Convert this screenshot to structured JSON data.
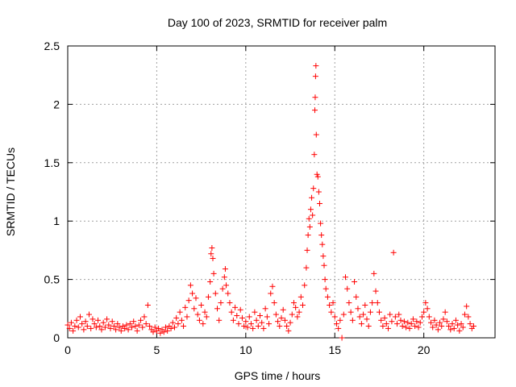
{
  "chart_data": {
    "type": "scatter",
    "title": "Day 100 of 2023, SRMTID for receiver palm",
    "xlabel": "GPS time / hours",
    "ylabel": "SRMTID / TECUs",
    "xlim": [
      0,
      24
    ],
    "ylim": [
      0,
      2.5
    ],
    "xticks": [
      0,
      5,
      10,
      15,
      20
    ],
    "yticks": [
      0,
      0.5,
      1,
      1.5,
      2,
      2.5
    ],
    "ytick_labels": [
      "0",
      "0.5",
      "1",
      "1.5",
      "2",
      "2.5"
    ],
    "grid": true,
    "marker": "+",
    "color": "#ff0000",
    "series": [
      {
        "name": "SRMTID",
        "points": [
          [
            0.0,
            0.11
          ],
          [
            0.1,
            0.08
          ],
          [
            0.2,
            0.13
          ],
          [
            0.3,
            0.06
          ],
          [
            0.4,
            0.1
          ],
          [
            0.5,
            0.15
          ],
          [
            0.6,
            0.09
          ],
          [
            0.7,
            0.18
          ],
          [
            0.8,
            0.12
          ],
          [
            0.9,
            0.07
          ],
          [
            1.0,
            0.14
          ],
          [
            1.1,
            0.1
          ],
          [
            1.2,
            0.2
          ],
          [
            1.3,
            0.08
          ],
          [
            1.4,
            0.16
          ],
          [
            1.5,
            0.12
          ],
          [
            1.6,
            0.09
          ],
          [
            1.7,
            0.15
          ],
          [
            1.8,
            0.1
          ],
          [
            1.9,
            0.07
          ],
          [
            2.0,
            0.13
          ],
          [
            2.1,
            0.09
          ],
          [
            2.2,
            0.16
          ],
          [
            2.3,
            0.11
          ],
          [
            2.4,
            0.08
          ],
          [
            2.5,
            0.14
          ],
          [
            2.6,
            0.1
          ],
          [
            2.7,
            0.07
          ],
          [
            2.8,
            0.12
          ],
          [
            2.9,
            0.09
          ],
          [
            3.0,
            0.06
          ],
          [
            3.1,
            0.1
          ],
          [
            3.2,
            0.08
          ],
          [
            3.3,
            0.11
          ],
          [
            3.4,
            0.07
          ],
          [
            3.5,
            0.12
          ],
          [
            3.6,
            0.09
          ],
          [
            3.7,
            0.14
          ],
          [
            3.8,
            0.1
          ],
          [
            3.9,
            0.06
          ],
          [
            4.0,
            0.11
          ],
          [
            4.1,
            0.15
          ],
          [
            4.2,
            0.09
          ],
          [
            4.3,
            0.18
          ],
          [
            4.4,
            0.12
          ],
          [
            4.5,
            0.28
          ],
          [
            4.6,
            0.1
          ],
          [
            4.7,
            0.07
          ],
          [
            4.8,
            0.05
          ],
          [
            4.9,
            0.09
          ],
          [
            5.0,
            0.06
          ],
          [
            5.1,
            0.08
          ],
          [
            5.2,
            0.04
          ],
          [
            5.3,
            0.07
          ],
          [
            5.4,
            0.05
          ],
          [
            5.5,
            0.09
          ],
          [
            5.6,
            0.06
          ],
          [
            5.7,
            0.1
          ],
          [
            5.8,
            0.08
          ],
          [
            5.9,
            0.13
          ],
          [
            6.0,
            0.09
          ],
          [
            6.1,
            0.17
          ],
          [
            6.2,
            0.12
          ],
          [
            6.3,
            0.22
          ],
          [
            6.4,
            0.15
          ],
          [
            6.5,
            0.1
          ],
          [
            6.6,
            0.26
          ],
          [
            6.7,
            0.18
          ],
          [
            6.8,
            0.32
          ],
          [
            6.9,
            0.45
          ],
          [
            7.0,
            0.38
          ],
          [
            7.1,
            0.25
          ],
          [
            7.2,
            0.34
          ],
          [
            7.3,
            0.2
          ],
          [
            7.4,
            0.15
          ],
          [
            7.5,
            0.28
          ],
          [
            7.6,
            0.12
          ],
          [
            7.7,
            0.22
          ],
          [
            7.8,
            0.18
          ],
          [
            7.9,
            0.35
          ],
          [
            8.0,
            0.48
          ],
          [
            8.05,
            0.72
          ],
          [
            8.1,
            0.77
          ],
          [
            8.15,
            0.68
          ],
          [
            8.2,
            0.55
          ],
          [
            8.3,
            0.38
          ],
          [
            8.4,
            0.25
          ],
          [
            8.5,
            0.15
          ],
          [
            8.6,
            0.3
          ],
          [
            8.7,
            0.42
          ],
          [
            8.8,
            0.52
          ],
          [
            8.85,
            0.59
          ],
          [
            8.9,
            0.45
          ],
          [
            9.0,
            0.38
          ],
          [
            9.1,
            0.3
          ],
          [
            9.2,
            0.22
          ],
          [
            9.3,
            0.15
          ],
          [
            9.4,
            0.26
          ],
          [
            9.5,
            0.19
          ],
          [
            9.6,
            0.12
          ],
          [
            9.7,
            0.24
          ],
          [
            9.8,
            0.17
          ],
          [
            9.9,
            0.1
          ],
          [
            10.0,
            0.14
          ],
          [
            10.1,
            0.09
          ],
          [
            10.2,
            0.18
          ],
          [
            10.3,
            0.12
          ],
          [
            10.4,
            0.08
          ],
          [
            10.5,
            0.22
          ],
          [
            10.6,
            0.15
          ],
          [
            10.7,
            0.1
          ],
          [
            10.8,
            0.19
          ],
          [
            10.9,
            0.13
          ],
          [
            11.0,
            0.08
          ],
          [
            11.1,
            0.25
          ],
          [
            11.2,
            0.18
          ],
          [
            11.3,
            0.12
          ],
          [
            11.4,
            0.38
          ],
          [
            11.5,
            0.44
          ],
          [
            11.6,
            0.3
          ],
          [
            11.7,
            0.2
          ],
          [
            11.8,
            0.14
          ],
          [
            11.9,
            0.1
          ],
          [
            12.0,
            0.17
          ],
          [
            12.1,
            0.24
          ],
          [
            12.2,
            0.15
          ],
          [
            12.3,
            0.1
          ],
          [
            12.4,
            0.06
          ],
          [
            12.5,
            0.13
          ],
          [
            12.6,
            0.2
          ],
          [
            12.7,
            0.3
          ],
          [
            12.8,
            0.26
          ],
          [
            12.9,
            0.18
          ],
          [
            13.0,
            0.22
          ],
          [
            13.1,
            0.35
          ],
          [
            13.2,
            0.28
          ],
          [
            13.3,
            0.45
          ],
          [
            13.4,
            0.6
          ],
          [
            13.45,
            0.75
          ],
          [
            13.5,
            0.88
          ],
          [
            13.55,
            1.02
          ],
          [
            13.6,
            0.95
          ],
          [
            13.65,
            1.1
          ],
          [
            13.7,
            1.2
          ],
          [
            13.75,
            1.05
          ],
          [
            13.8,
            1.28
          ],
          [
            13.85,
            1.57
          ],
          [
            13.88,
            1.95
          ],
          [
            13.9,
            2.06
          ],
          [
            13.92,
            2.24
          ],
          [
            13.94,
            2.33
          ],
          [
            13.96,
            1.74
          ],
          [
            14.0,
            1.4
          ],
          [
            14.05,
            1.38
          ],
          [
            14.1,
            1.25
          ],
          [
            14.15,
            1.15
          ],
          [
            14.2,
            0.98
          ],
          [
            14.25,
            0.88
          ],
          [
            14.3,
            0.8
          ],
          [
            14.35,
            0.7
          ],
          [
            14.4,
            0.62
          ],
          [
            14.45,
            0.5
          ],
          [
            14.5,
            0.42
          ],
          [
            14.6,
            0.35
          ],
          [
            14.7,
            0.28
          ],
          [
            14.8,
            0.22
          ],
          [
            14.9,
            0.3
          ],
          [
            15.0,
            0.18
          ],
          [
            15.1,
            0.12
          ],
          [
            15.2,
            0.08
          ],
          [
            15.3,
            0.15
          ],
          [
            15.4,
            0.0
          ],
          [
            15.5,
            0.2
          ],
          [
            15.6,
            0.52
          ],
          [
            15.7,
            0.42
          ],
          [
            15.8,
            0.3
          ],
          [
            15.9,
            0.22
          ],
          [
            16.0,
            0.15
          ],
          [
            16.1,
            0.48
          ],
          [
            16.2,
            0.35
          ],
          [
            16.3,
            0.25
          ],
          [
            16.4,
            0.18
          ],
          [
            16.5,
            0.12
          ],
          [
            16.6,
            0.2
          ],
          [
            16.7,
            0.28
          ],
          [
            16.8,
            0.16
          ],
          [
            16.9,
            0.1
          ],
          [
            17.0,
            0.22
          ],
          [
            17.1,
            0.3
          ],
          [
            17.2,
            0.55
          ],
          [
            17.3,
            0.4
          ],
          [
            17.4,
            0.3
          ],
          [
            17.5,
            0.22
          ],
          [
            17.6,
            0.15
          ],
          [
            17.7,
            0.1
          ],
          [
            17.8,
            0.17
          ],
          [
            17.9,
            0.12
          ],
          [
            18.0,
            0.08
          ],
          [
            18.1,
            0.2
          ],
          [
            18.2,
            0.14
          ],
          [
            18.3,
            0.73
          ],
          [
            18.4,
            0.18
          ],
          [
            18.5,
            0.12
          ],
          [
            18.6,
            0.2
          ],
          [
            18.7,
            0.15
          ],
          [
            18.8,
            0.1
          ],
          [
            18.9,
            0.14
          ],
          [
            19.0,
            0.09
          ],
          [
            19.1,
            0.13
          ],
          [
            19.2,
            0.08
          ],
          [
            19.3,
            0.12
          ],
          [
            19.4,
            0.16
          ],
          [
            19.5,
            0.1
          ],
          [
            19.6,
            0.14
          ],
          [
            19.7,
            0.09
          ],
          [
            19.8,
            0.13
          ],
          [
            19.9,
            0.18
          ],
          [
            20.0,
            0.22
          ],
          [
            20.1,
            0.3
          ],
          [
            20.2,
            0.25
          ],
          [
            20.3,
            0.18
          ],
          [
            20.4,
            0.13
          ],
          [
            20.5,
            0.09
          ],
          [
            20.6,
            0.15
          ],
          [
            20.7,
            0.11
          ],
          [
            20.8,
            0.07
          ],
          [
            20.9,
            0.13
          ],
          [
            21.0,
            0.1
          ],
          [
            21.1,
            0.16
          ],
          [
            21.2,
            0.22
          ],
          [
            21.3,
            0.14
          ],
          [
            21.4,
            0.1
          ],
          [
            21.5,
            0.07
          ],
          [
            21.6,
            0.12
          ],
          [
            21.7,
            0.08
          ],
          [
            21.8,
            0.15
          ],
          [
            21.9,
            0.11
          ],
          [
            22.0,
            0.06
          ],
          [
            22.1,
            0.12
          ],
          [
            22.2,
            0.09
          ],
          [
            22.3,
            0.2
          ],
          [
            22.4,
            0.27
          ],
          [
            22.5,
            0.18
          ],
          [
            22.6,
            0.12
          ],
          [
            22.7,
            0.08
          ],
          [
            22.8,
            0.1
          ]
        ]
      }
    ]
  }
}
